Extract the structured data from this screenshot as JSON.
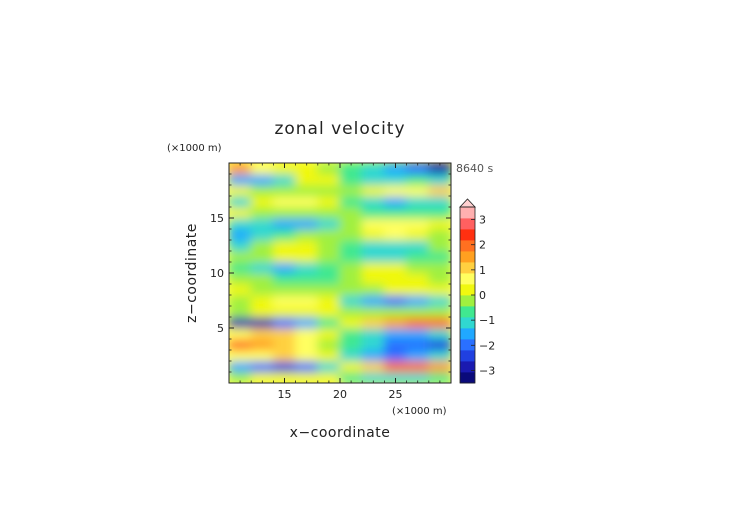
{
  "chart_data": {
    "type": "heatmap",
    "title": "zonal velocity",
    "xlabel": "x−coordinate",
    "ylabel": "z−coordinate",
    "x_unit": "(×1000 m)",
    "z_unit": "(×1000 m)",
    "time_label": "8640 s",
    "xlim": [
      10,
      30
    ],
    "zlim": [
      0,
      20
    ],
    "x_ticks": [
      "15",
      "20",
      "25"
    ],
    "z_ticks": [
      "5",
      "10",
      "15"
    ],
    "colorbar": {
      "min": -3.5,
      "max": 3.5,
      "step": 0.5,
      "tick_labels": [
        "3",
        "2",
        "1",
        "0",
        "−1",
        "−2",
        "−3"
      ],
      "tick_values": [
        3,
        2,
        1,
        0,
        -1,
        -2,
        -3
      ],
      "extend": "max",
      "colors": [
        "#0a0a7a",
        "#1a1ab0",
        "#2040e0",
        "#2a70ff",
        "#20a8ff",
        "#30d8d0",
        "#40e890",
        "#a0f040",
        "#f0f810",
        "#ffff60",
        "#ffd040",
        "#ffa020",
        "#ff7020",
        "#ff3010",
        "#ff6060",
        "#ffb0b0"
      ]
    },
    "z_levels": [
      0.5,
      1.5,
      2.5,
      3.5,
      4.5,
      5.5,
      6.5,
      7.5,
      8.5,
      9.5,
      10.5,
      11.5,
      12.5,
      13.5,
      14.5,
      15.5,
      16.5,
      17.5,
      18.5,
      19.5
    ],
    "x_columns": [
      11,
      13,
      15,
      17,
      19,
      21,
      23,
      25,
      27,
      29
    ],
    "values": [
      [
        0.4,
        0.6,
        0.8,
        0.8,
        0.5,
        -0.3,
        -0.6,
        -0.8,
        -0.7,
        -0.5
      ],
      [
        -1.2,
        -1.8,
        -2.2,
        -1.8,
        -0.8,
        0.8,
        1.8,
        2.5,
        2.6,
        2.0
      ],
      [
        1.0,
        1.4,
        1.6,
        1.3,
        0.6,
        -0.6,
        -1.3,
        -1.6,
        -1.5,
        -1.0
      ],
      [
        2.6,
        2.2,
        1.6,
        1.0,
        0.3,
        -0.4,
        -1.0,
        -1.6,
        -2.0,
        -2.2
      ],
      [
        1.4,
        1.8,
        1.9,
        1.4,
        0.5,
        -0.4,
        -1.0,
        -1.4,
        -1.4,
        -1.0
      ],
      [
        -3.0,
        -2.6,
        -2.0,
        -1.4,
        -0.5,
        0.6,
        1.5,
        2.3,
        2.6,
        2.6
      ],
      [
        0.4,
        0.6,
        0.8,
        0.9,
        0.6,
        0.1,
        0.2,
        0.3,
        0.2,
        0.2
      ],
      [
        0.2,
        0.8,
        1.3,
        1.4,
        0.8,
        -0.6,
        -1.4,
        -1.6,
        -1.3,
        -0.6
      ],
      [
        0.5,
        0.4,
        0.4,
        0.4,
        0.3,
        0.3,
        0.4,
        0.5,
        0.6,
        0.5
      ],
      [
        0.4,
        0.2,
        -0.2,
        -0.4,
        -0.3,
        0.2,
        0.6,
        0.8,
        0.6,
        0.4
      ],
      [
        -0.3,
        -0.9,
        -1.2,
        -1.0,
        -0.4,
        0.3,
        0.5,
        0.7,
        0.4,
        0.2
      ],
      [
        0.1,
        0.4,
        0.6,
        0.5,
        0.3,
        -0.3,
        -0.6,
        -0.7,
        -0.5,
        -0.3
      ],
      [
        -0.7,
        0.2,
        0.8,
        0.9,
        0.4,
        -0.3,
        -0.9,
        -1.0,
        -0.6,
        0.2
      ],
      [
        -1.1,
        -0.8,
        -0.2,
        0.2,
        0.2,
        0.3,
        0.8,
        1.1,
        0.9,
        0.4
      ],
      [
        -0.8,
        -0.9,
        -1.2,
        -1.2,
        -0.6,
        0.4,
        1.0,
        1.2,
        1.0,
        0.5
      ],
      [
        0.6,
        0.4,
        0.2,
        0.1,
        0.0,
        0.0,
        -0.2,
        -0.3,
        -0.3,
        -0.2
      ],
      [
        -0.8,
        0.8,
        1.2,
        1.3,
        0.6,
        -0.5,
        -1.0,
        -1.2,
        -0.9,
        -0.6
      ],
      [
        0.5,
        0.2,
        0.2,
        0.3,
        0.3,
        0.4,
        0.8,
        1.0,
        1.2,
        1.6
      ],
      [
        -1.2,
        -1.4,
        -0.6,
        0.6,
        0.8,
        -0.5,
        -0.8,
        -0.6,
        -0.3,
        -0.6
      ],
      [
        2.2,
        1.4,
        0.8,
        0.5,
        0.2,
        -0.3,
        -0.8,
        -1.4,
        -2.0,
        -2.8
      ]
    ]
  }
}
